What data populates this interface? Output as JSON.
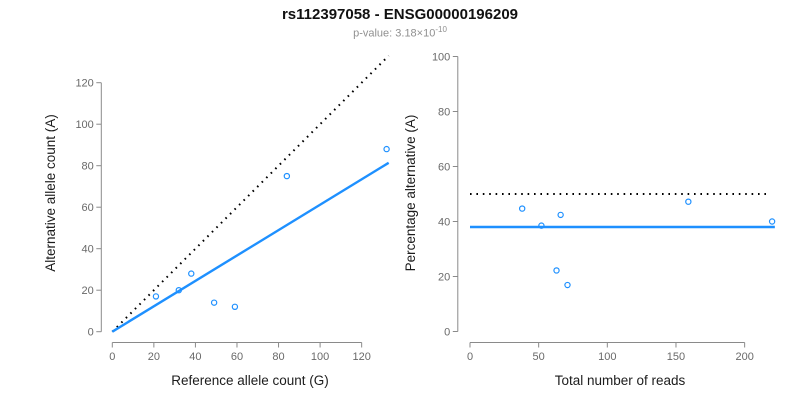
{
  "header": {
    "title": "rs112397058 - ENSG00000196209",
    "subtitle_prefix": "p-value: 3.18×10",
    "subtitle_exponent": "-10"
  },
  "colors": {
    "accent_blue": "#1E90FF",
    "line_black": "#000000",
    "axis_gray": "#8A8A8A",
    "tick_text_gray": "#696969",
    "axis_title_color": "#1C1C1C",
    "subtitle_gray": "#909090",
    "background": "#FFFFFF"
  },
  "chart_data": [
    {
      "type": "scatter",
      "name": "allele-count-scatter",
      "xlabel": "Reference allele count (G)",
      "ylabel": "Alternative allele count (A)",
      "xticks": [
        0,
        20,
        40,
        60,
        80,
        100,
        120
      ],
      "yticks": [
        0,
        20,
        40,
        60,
        80,
        100,
        120
      ],
      "xlim": [
        0,
        133
      ],
      "ylim": [
        0,
        133
      ],
      "grid": false,
      "legend": "none",
      "marker": "open-circle",
      "points": [
        [
          21,
          17
        ],
        [
          32,
          20
        ],
        [
          38,
          28
        ],
        [
          49,
          14
        ],
        [
          59,
          12
        ],
        [
          84,
          75
        ],
        [
          132,
          88
        ]
      ],
      "lines": [
        {
          "name": "identity-line",
          "style": "dotted",
          "color": "#000000",
          "width": 2,
          "from": [
            0,
            0
          ],
          "to": [
            133,
            133
          ]
        },
        {
          "name": "fit-line",
          "style": "solid",
          "color": "#1E90FF",
          "width": 2.4,
          "from": [
            0,
            0
          ],
          "to": [
            133,
            81.4
          ]
        }
      ]
    },
    {
      "type": "scatter",
      "name": "percentage-scatter",
      "xlabel": "Total number of reads",
      "ylabel": "Percentage alternative (A)",
      "xticks": [
        0,
        50,
        100,
        150,
        200
      ],
      "yticks": [
        0,
        20,
        40,
        60,
        80,
        100
      ],
      "xlim": [
        0,
        222
      ],
      "ylim": [
        0,
        100
      ],
      "grid": false,
      "legend": "none",
      "marker": "open-circle",
      "points": [
        [
          38,
          44.7
        ],
        [
          52,
          38.5
        ],
        [
          66,
          42.4
        ],
        [
          63,
          22.2
        ],
        [
          71,
          16.9
        ],
        [
          159,
          47.2
        ],
        [
          220,
          40
        ]
      ],
      "lines": [
        {
          "name": "expected-50pct-line",
          "style": "dotted",
          "color": "#000000",
          "width": 2,
          "from": [
            0,
            50
          ],
          "to": [
            217,
            50
          ]
        },
        {
          "name": "observed-38pct-line",
          "style": "solid",
          "color": "#1E90FF",
          "width": 2.4,
          "from": [
            0,
            38
          ],
          "to": [
            222,
            38
          ]
        }
      ]
    }
  ]
}
